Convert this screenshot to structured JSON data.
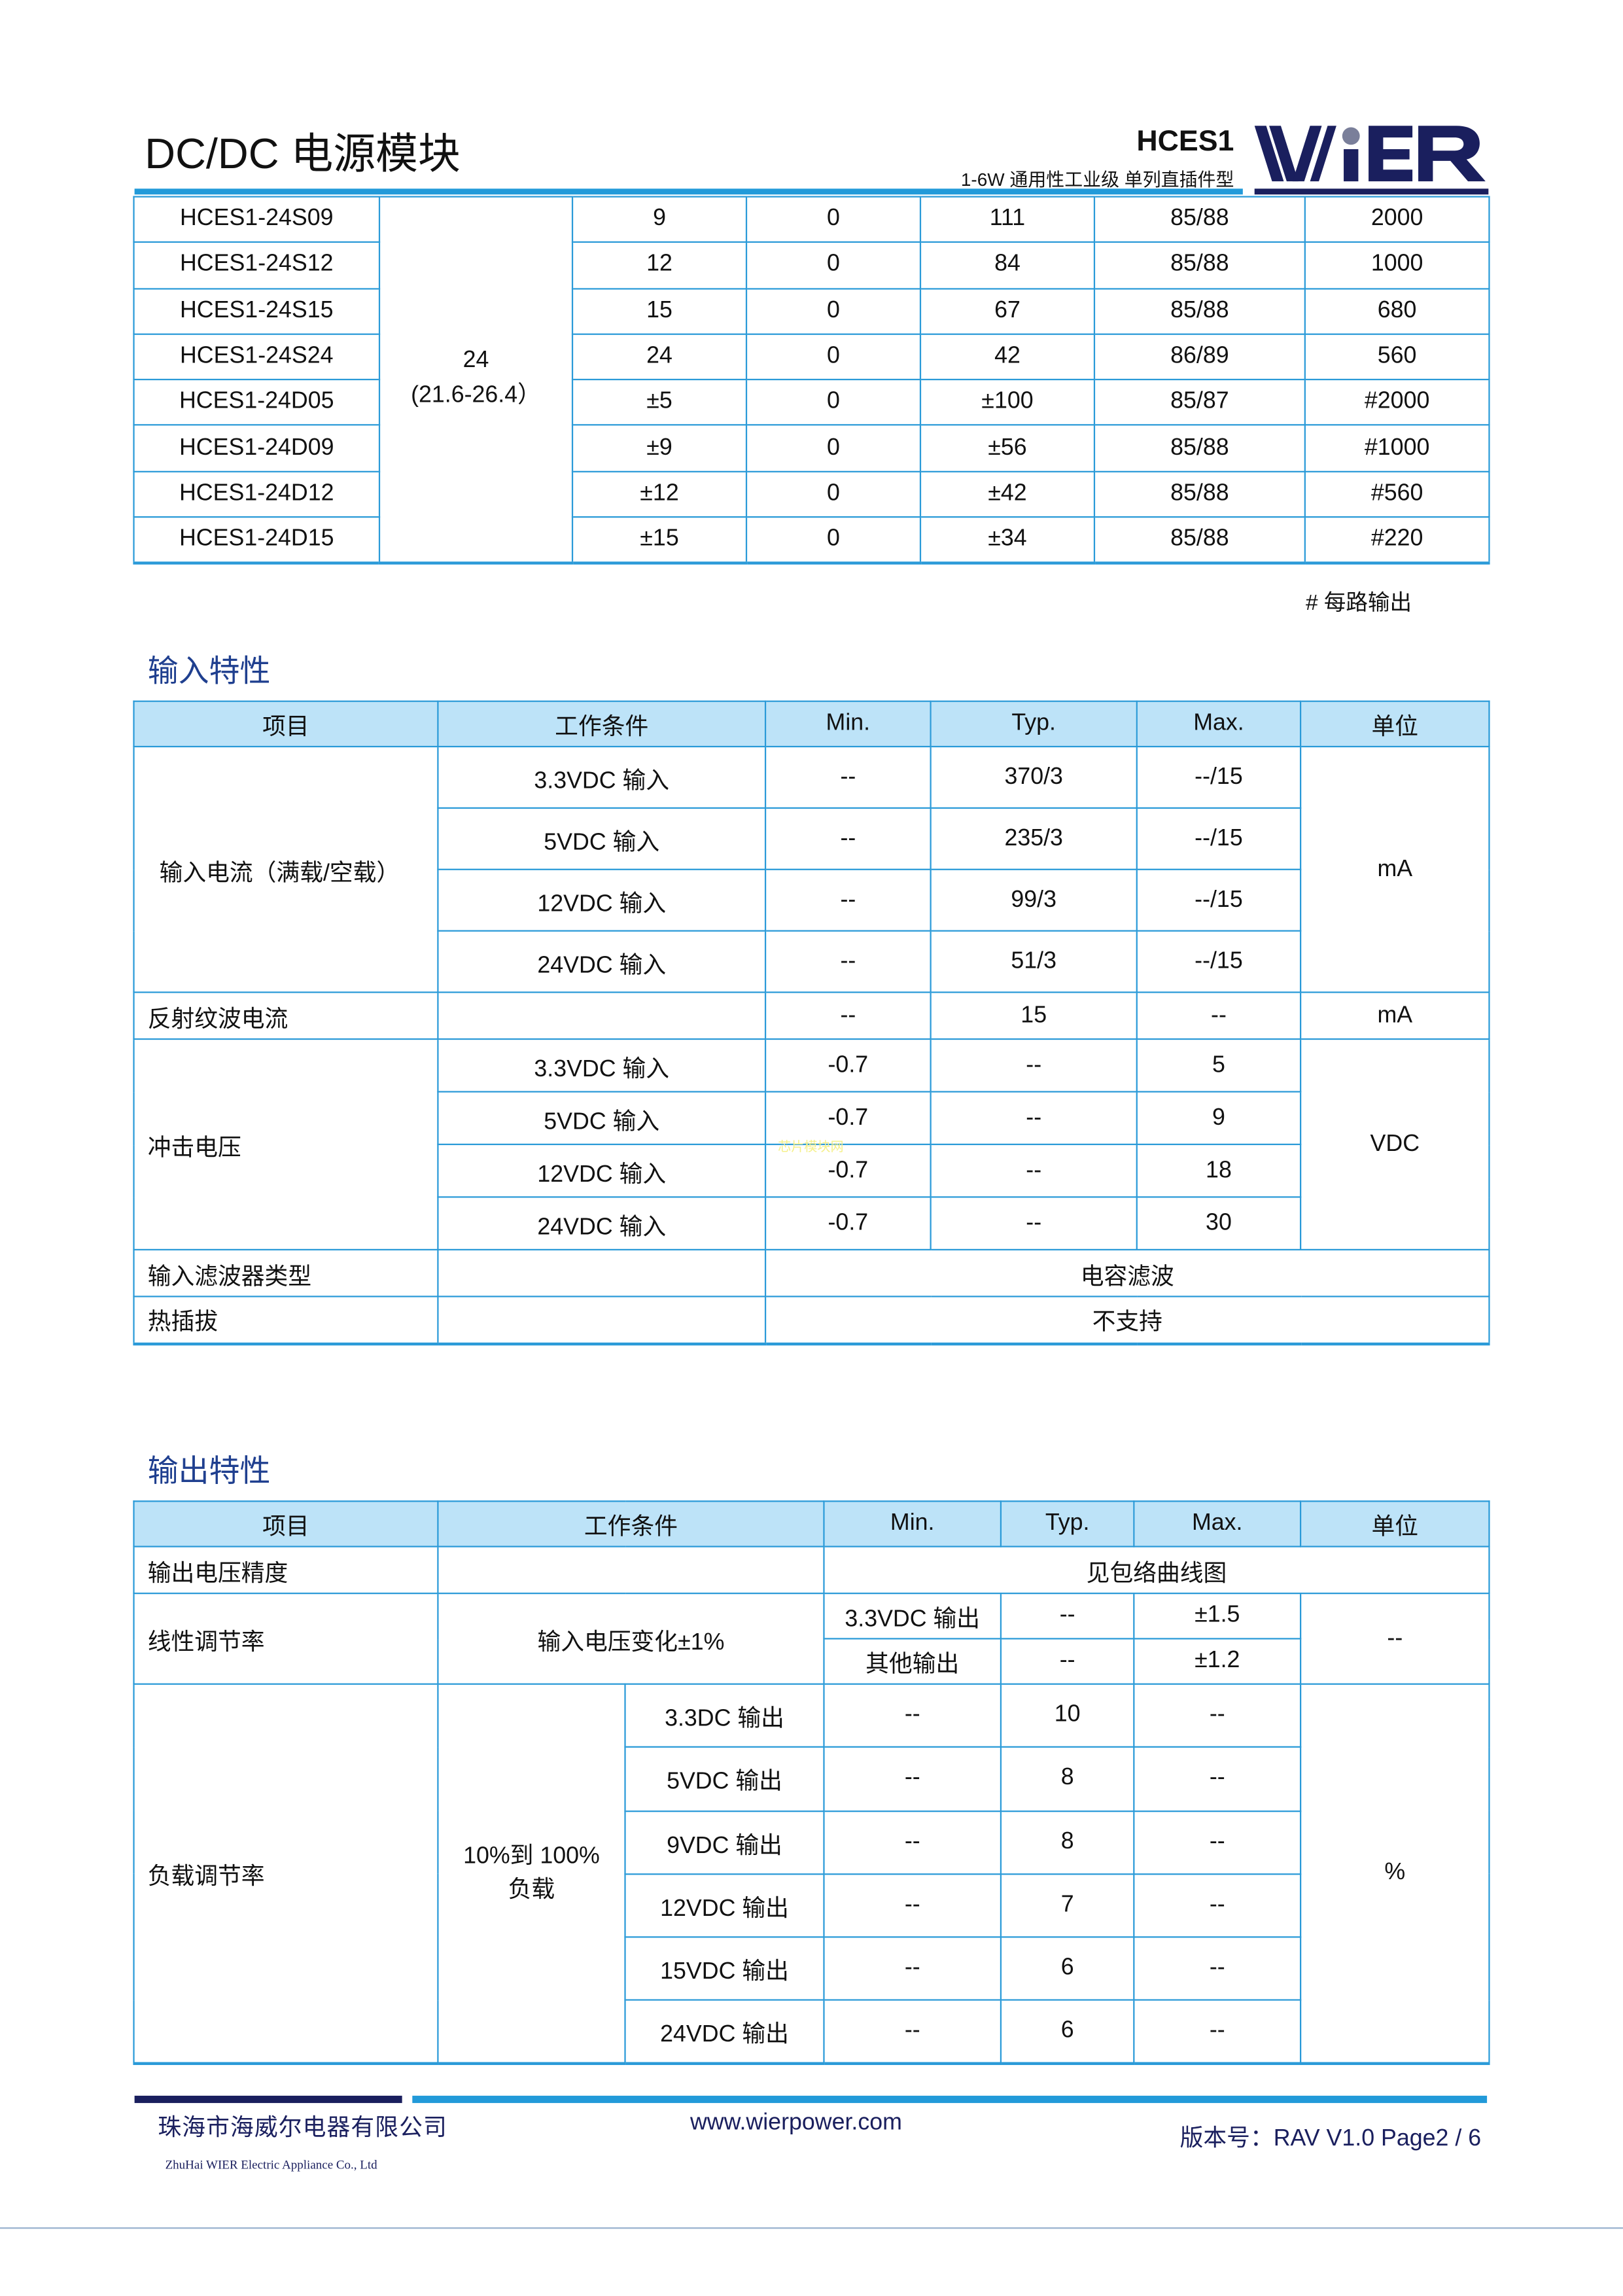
{
  "header": {
    "title": "DC/DC 电源模块",
    "model": "HCES1",
    "subtitle": "1-6W  通用性工业级  单列直插件型",
    "logo_text": "WiER"
  },
  "models": {
    "input_voltage": "24",
    "input_range": "(21.6-26.4）",
    "rows": [
      [
        "HCES1-24S09",
        "9",
        "0",
        "111",
        "85/88",
        "2000"
      ],
      [
        "HCES1-24S12",
        "12",
        "0",
        "84",
        "85/88",
        "1000"
      ],
      [
        "HCES1-24S15",
        "15",
        "0",
        "67",
        "85/88",
        "680"
      ],
      [
        "HCES1-24S24",
        "24",
        "0",
        "42",
        "86/89",
        "560"
      ],
      [
        "HCES1-24D05",
        "±5",
        "0",
        "±100",
        "85/87",
        "#2000"
      ],
      [
        "HCES1-24D09",
        "±9",
        "0",
        "±56",
        "85/88",
        "#1000"
      ],
      [
        "HCES1-24D12",
        "±12",
        "0",
        "±42",
        "85/88",
        "#560"
      ],
      [
        "HCES1-24D15",
        "±15",
        "0",
        "±34",
        "85/88",
        "#220"
      ]
    ],
    "note": "#  每路输出"
  },
  "input_spec": {
    "title": "输入特性",
    "headers": [
      "项目",
      "工作条件",
      "Min.",
      "Typ.",
      "Max.",
      "单位"
    ],
    "input_current": {
      "label": "输入电流（满载/空载）",
      "unit": "mA",
      "rows": [
        [
          "3.3VDC 输入",
          "--",
          "370/3",
          "--/15"
        ],
        [
          "5VDC 输入",
          "--",
          "235/3",
          "--/15"
        ],
        [
          "12VDC 输入",
          "--",
          "99/3",
          "--/15"
        ],
        [
          "24VDC 输入",
          "--",
          "51/3",
          "--/15"
        ]
      ]
    },
    "ripple": [
      "反射纹波电流",
      "",
      "--",
      "15",
      "--",
      "mA"
    ],
    "surge": {
      "label": "冲击电压",
      "unit": "VDC",
      "rows": [
        [
          "3.3VDC 输入",
          "-0.7",
          "--",
          "5"
        ],
        [
          "5VDC 输入",
          "-0.7",
          "--",
          "9"
        ],
        [
          "12VDC 输入",
          "-0.7",
          "--",
          "18"
        ],
        [
          "24VDC 输入",
          "-0.7",
          "--",
          "30"
        ]
      ]
    },
    "filter": [
      "输入滤波器类型",
      "",
      "电容滤波"
    ],
    "hotplug": [
      "热插拔",
      "",
      "不支持"
    ]
  },
  "output_spec": {
    "title": "输出特性",
    "headers": [
      "项目",
      "工作条件",
      "Min.",
      "Typ.",
      "Max.",
      "单位"
    ],
    "accuracy": [
      "输出电压精度",
      "",
      "见包络曲线图"
    ],
    "line_reg": {
      "label": "线性调节率",
      "condition": "输入电压变化±1%",
      "unit": "--",
      "rows": [
        [
          "3.3VDC 输出",
          "--",
          "±1.5"
        ],
        [
          "其他输出",
          "--",
          "±1.2"
        ]
      ]
    },
    "load_reg": {
      "label": "负载调节率",
      "condition_line1": "10%到 100%",
      "condition_line2": "负载",
      "unit": "%",
      "rows": [
        [
          "3.3DC 输出",
          "--",
          "10",
          "--"
        ],
        [
          "5VDC 输出",
          "--",
          "8",
          "--"
        ],
        [
          "9VDC 输出",
          "--",
          "8",
          "--"
        ],
        [
          "12VDC 输出",
          "--",
          "7",
          "--"
        ],
        [
          "15VDC 输出",
          "--",
          "6",
          "--"
        ],
        [
          "24VDC 输出",
          "--",
          "6",
          "--"
        ]
      ]
    }
  },
  "watermark": "芯片模块网",
  "footer": {
    "company_cn": "珠海市海威尔电器有限公司",
    "company_en": "ZhuHai WIER Electric Appliance Co., Ltd",
    "url": "www.wierpower.com",
    "version": "版本号：RAV V1.0 Page2 / 6"
  },
  "colors": {
    "accent_blue": "#229ad9",
    "navy": "#1a1f5e",
    "header_fill": "#bde3f8",
    "section_title": "#1f3f8f"
  }
}
